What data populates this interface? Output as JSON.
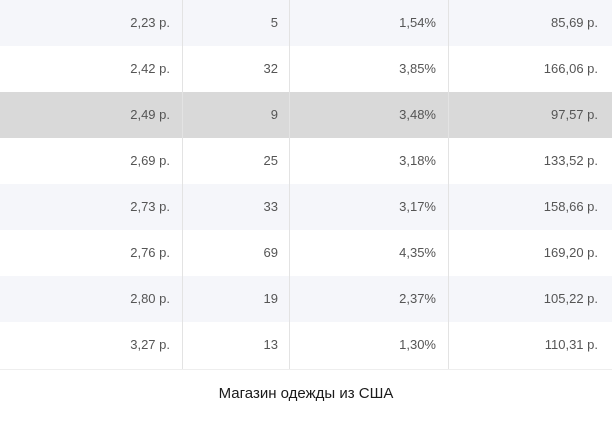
{
  "table": {
    "rows": [
      {
        "price": "2,23 р.",
        "count": "5",
        "percent": "1,54%",
        "total": "85,69 р."
      },
      {
        "price": "2,42 р.",
        "count": "32",
        "percent": "3,85%",
        "total": "166,06 р."
      },
      {
        "price": "2,49 р.",
        "count": "9",
        "percent": "3,48%",
        "total": "97,57 р."
      },
      {
        "price": "2,69 р.",
        "count": "25",
        "percent": "3,18%",
        "total": "133,52 р."
      },
      {
        "price": "2,73 р.",
        "count": "33",
        "percent": "3,17%",
        "total": "158,66 р."
      },
      {
        "price": "2,76 р.",
        "count": "69",
        "percent": "4,35%",
        "total": "169,20 р."
      },
      {
        "price": "2,80 р.",
        "count": "19",
        "percent": "2,37%",
        "total": "105,22 р."
      },
      {
        "price": "3,27 р.",
        "count": "13",
        "percent": "1,30%",
        "total": "110,31 р."
      }
    ]
  },
  "caption": "Магазин одежды из США",
  "colors": {
    "row_alt": "#f5f6fa",
    "row_highlight": "#d9d9d9",
    "text": "#555555"
  }
}
